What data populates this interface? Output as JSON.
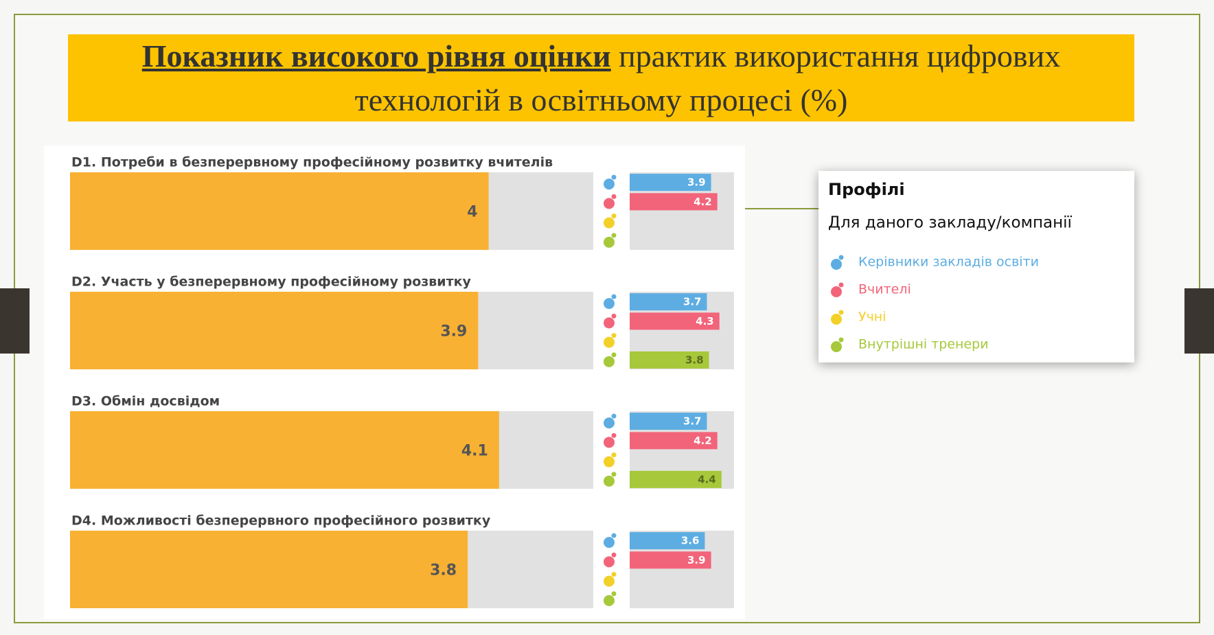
{
  "title": {
    "bold": "Показник високого рівня оцінки",
    "rest": "практик використання цифрових технологій в освітньому процесі (%)"
  },
  "legend": {
    "title": "Профілі",
    "subtitle": "Для даного закладу/компанії",
    "series": [
      {
        "name": "Керівники закладів освіти",
        "color": "#5dade2"
      },
      {
        "name": "Вчителі",
        "color": "#f2647a"
      },
      {
        "name": "Учні",
        "color": "#f2d027"
      },
      {
        "name": "Внутрішні тренери",
        "color": "#a6c83a"
      }
    ]
  },
  "chart_data": [
    {
      "type": "bar",
      "title": "D1. Потреби в безперервному професійному розвитку вчителів",
      "overall": 4,
      "overall_color": "#f8b133",
      "values": [
        3.9,
        4.2,
        null,
        null
      ],
      "xlim": [
        0,
        5
      ]
    },
    {
      "type": "bar",
      "title": "D2. Участь у безперервному професійному розвитку",
      "overall": 3.9,
      "overall_color": "#f8b133",
      "values": [
        3.7,
        4.3,
        null,
        3.8
      ],
      "xlim": [
        0,
        5
      ]
    },
    {
      "type": "bar",
      "title": "D3. Обмін досвідом",
      "overall": 4.1,
      "overall_color": "#f8b133",
      "values": [
        3.7,
        4.2,
        null,
        4.4
      ],
      "xlim": [
        0,
        5
      ]
    },
    {
      "type": "bar",
      "title": "D4. Можливості безперервного професійного розвитку",
      "overall": 3.8,
      "overall_color": "#f8b133",
      "values": [
        3.6,
        3.9,
        null,
        null
      ],
      "xlim": [
        0,
        5
      ]
    }
  ]
}
